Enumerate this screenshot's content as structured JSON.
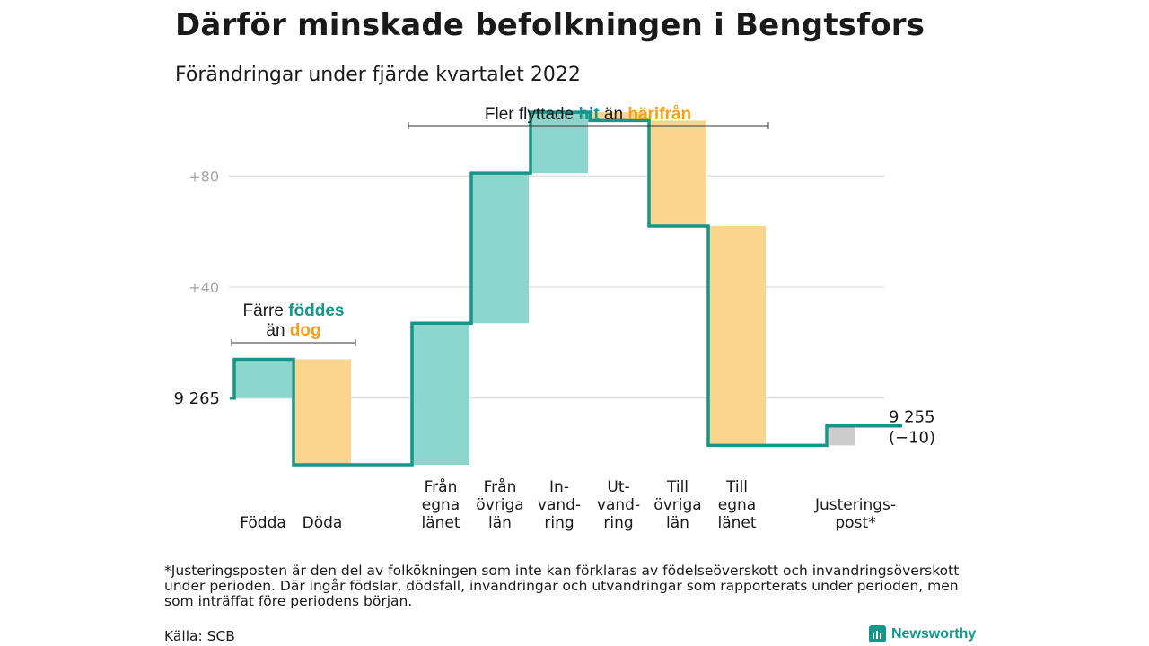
{
  "title": "Därför minskade befolkningen i Bengtsfors",
  "subtitle": "Förändringar under fjärde kvartalet 2022",
  "colors": {
    "increase": "#8dd6cd",
    "decrease": "#fbd58e",
    "adjustment": "#cccccc",
    "line": "#14968a",
    "grid": "#e3e3e3",
    "teal_text": "#14968a",
    "orange_text": "#f2a11c"
  },
  "annotations": {
    "births": {
      "line1": "Färre ",
      "hl1": "föddes",
      "line2": "än ",
      "hl2": "dog"
    },
    "migration": {
      "pre": "Fler flyttade ",
      "hl1": "hit",
      "mid": " än ",
      "hl2": "härifrån"
    }
  },
  "chart_data": {
    "type": "waterfall",
    "start_value": 9265,
    "start_label": "9 265",
    "end_value": 9255,
    "end_label": "9 255",
    "change_label": "(−10)",
    "yticks": [
      "+80",
      "+40"
    ],
    "ytick_values": [
      80,
      40
    ],
    "ylim": [
      -24,
      104
    ],
    "steps": [
      {
        "label": [
          "Födda"
        ],
        "value": 14,
        "kind": "increase",
        "group": 0
      },
      {
        "label": [
          "Döda"
        ],
        "value": -38,
        "kind": "decrease",
        "group": 0
      },
      {
        "label": [
          "Från",
          "egna",
          "länet"
        ],
        "value": 51,
        "kind": "increase",
        "group": 1
      },
      {
        "label": [
          "Från",
          "övriga",
          "län"
        ],
        "value": 54,
        "kind": "increase",
        "group": 1
      },
      {
        "label": [
          "In-",
          "vand-",
          "ring"
        ],
        "value": 22,
        "kind": "increase",
        "group": 1
      },
      {
        "label": [
          "Ut-",
          "vand-",
          "ring"
        ],
        "value": -3,
        "kind": "decrease",
        "group": 1
      },
      {
        "label": [
          "Till",
          "övriga",
          "län"
        ],
        "value": -38,
        "kind": "decrease",
        "group": 1
      },
      {
        "label": [
          "Till",
          "egna",
          "länet"
        ],
        "value": -79,
        "kind": "decrease",
        "group": 1
      },
      {
        "label": [
          "Justerings-",
          "post*"
        ],
        "value": 7,
        "kind": "adjustment",
        "group": 2
      }
    ]
  },
  "footnote": "*Justeringsposten är den del av folkökningen som inte kan förklaras av födelseöverskott och invandringsöverskott under perioden. Där ingår födslar, dödsfall, invandringar och utvandringar som rapporterats under perioden, men som inträffat före periodens början.",
  "source": "Källa: SCB",
  "brand": "Newsworthy"
}
